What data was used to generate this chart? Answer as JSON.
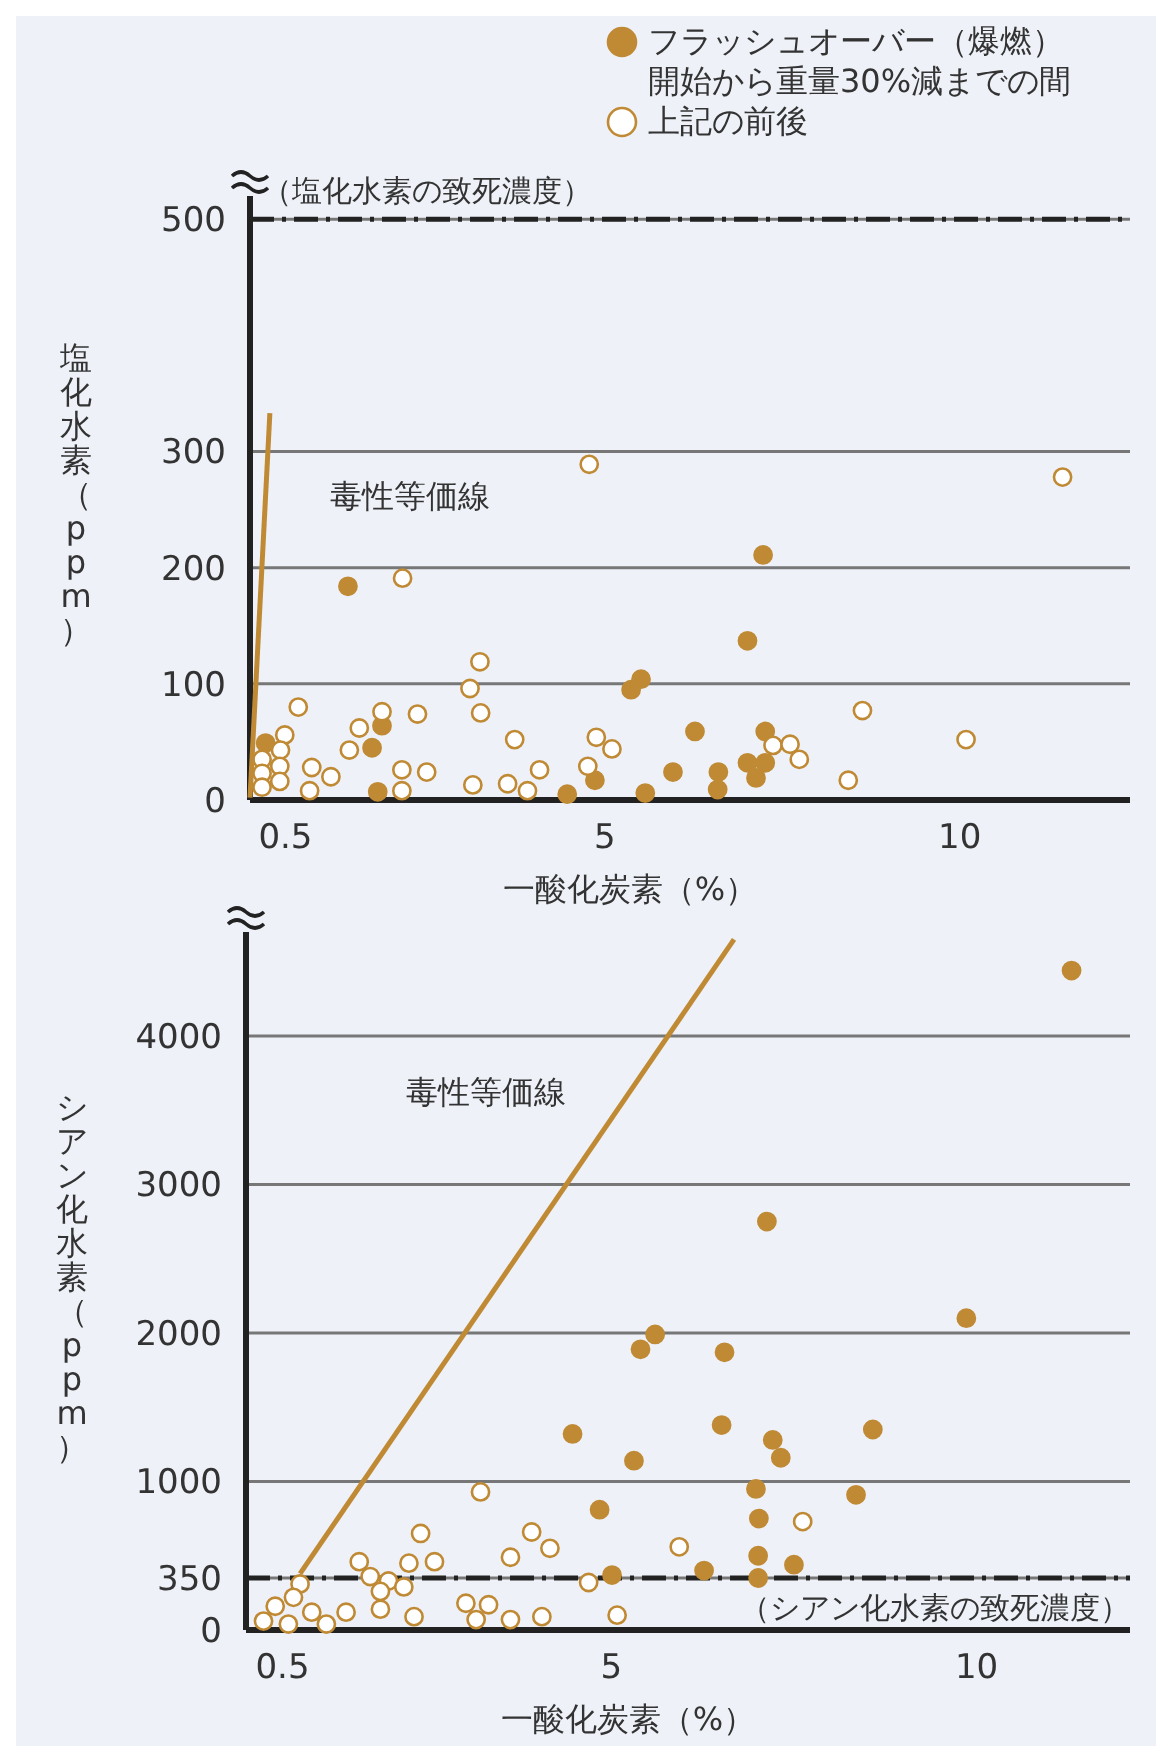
{
  "chart_data": [
    {
      "type": "scatter",
      "xlabel": "一酸化炭素（%）",
      "ylabel": "塩化水素（ppm）",
      "xlim": [
        0,
        12.4
      ],
      "ylim": [
        0,
        520
      ],
      "xticks": [
        0.5,
        5,
        10
      ],
      "yticks": [
        0,
        100,
        200,
        300,
        500
      ],
      "grid": "y",
      "legend": "top right",
      "marker": "circle",
      "series": [
        {
          "name": "フラッシュオーバー（爆燃）開始から重量30%減までの間",
          "color": "#c08a35",
          "x": [
            1.38,
            5.51,
            5.37,
            1.86,
            0.22,
            1.72,
            1.8,
            4.86,
            4.47,
            5.57,
            5.96,
            7.23,
            7.01,
            6.27,
            7.26,
            7.01,
            7.26,
            6.6,
            7.13,
            6.59
          ],
          "values": [
            184,
            104,
            95,
            64,
            49,
            45,
            7,
            17,
            5,
            6,
            24,
            211,
            137,
            59,
            59,
            32,
            32,
            24,
            19,
            9
          ]
        },
        {
          "name": "上記の前後",
          "color": "#ffffff",
          "x": [
            4.78,
            2.15,
            3.24,
            3.1,
            3.25,
            0.68,
            1.86,
            2.36,
            1.54,
            0.49,
            0.43,
            1.4,
            3.73,
            4.88,
            5.1,
            0.17,
            0.42,
            0.87,
            1.14,
            0.17,
            0.42,
            0.17,
            0.84,
            2.14,
            2.49,
            2.14,
            3.14,
            3.63,
            3.91,
            4.08,
            4.76,
            11.45,
            8.63,
            7.37,
            7.61,
            10.09,
            7.74,
            8.43
          ],
          "values": [
            289,
            191,
            119,
            96,
            75,
            80,
            76,
            74,
            62,
            56,
            43,
            43,
            52,
            54,
            44,
            35,
            29,
            28,
            20,
            23,
            16,
            11,
            8,
            26,
            24,
            8,
            13,
            14,
            8,
            26,
            29,
            278,
            77,
            47,
            48,
            52,
            35,
            17
          ]
        },
        {
          "type": "line",
          "color": "#c08a35",
          "marker": "none",
          "x": [
            0,
            0.28
          ],
          "values": [
            2,
            333
          ]
        }
      ],
      "ref_lines": [
        {
          "axis": "y",
          "value": 500,
          "label": "（塩化水素の致死濃度）",
          "line_style": "dashed",
          "color": "#222222"
        }
      ],
      "annotations": [
        "毒性等価線"
      ]
    },
    {
      "type": "scatter",
      "xlabel": "一酸化炭素（%）",
      "ylabel": "シアン化水素（ppm）",
      "xlim": [
        0,
        12.1
      ],
      "ylim": [
        0,
        4700
      ],
      "xticks": [
        0.5,
        5,
        10
      ],
      "yticks": [
        0,
        350,
        1000,
        2000,
        3000,
        4000
      ],
      "grid": "y",
      "marker": "circle",
      "series": [
        {
          "color": "#c08a35",
          "x": [
            5.6,
            5.4,
            4.47,
            5.31,
            4.84,
            5.01,
            11.3,
            7.13,
            9.86,
            6.55,
            6.51,
            7.21,
            7.32,
            8.58,
            6.98,
            8.35,
            7.02,
            6.27,
            7.01,
            7.5,
            7.01
          ],
          "values": [
            1990,
            1890,
            1320,
            1140,
            810,
            370,
            4440,
            2750,
            2100,
            1870,
            1380,
            1280,
            1160,
            1350,
            950,
            910,
            750,
            400,
            500,
            440,
            350
          ]
        },
        {
          "color": "#ffffff",
          "x": [
            3.21,
            2.39,
            3.91,
            4.16,
            5.93,
            1.55,
            2.23,
            2.58,
            3.62,
            1.7,
            1.95,
            2.16,
            1.84,
            0.74,
            0.65,
            0.4,
            0.24,
            0.58,
            0.9,
            1.1,
            1.37,
            1.84,
            2.3,
            3.01,
            3.32,
            3.15,
            3.62,
            4.05,
            4.69,
            5.08,
            7.62
          ],
          "values": [
            930,
            650,
            660,
            550,
            560,
            460,
            450,
            460,
            490,
            360,
            330,
            290,
            260,
            310,
            220,
            160,
            60,
            40,
            120,
            40,
            120,
            140,
            90,
            180,
            170,
            70,
            70,
            90,
            320,
            100,
            730
          ]
        },
        {
          "type": "line",
          "color": "#c08a35",
          "marker": "none",
          "x": [
            0.74,
            6.68
          ],
          "values": [
            380,
            4650
          ]
        }
      ],
      "ref_lines": [
        {
          "axis": "y",
          "value": 350,
          "label": "（シアン化水素の致死濃度）",
          "line_style": "dashed",
          "color": "#222222"
        }
      ],
      "annotations": [
        "毒性等価線"
      ]
    }
  ]
}
